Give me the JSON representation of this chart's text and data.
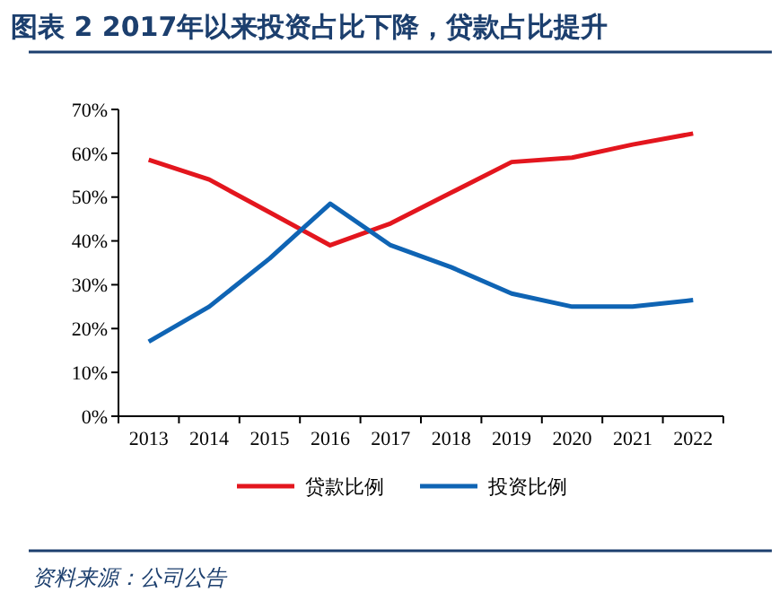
{
  "chart_data": {
    "type": "line",
    "title": "图表 2   2017年以来投资占比下降，贷款占比提升",
    "categories": [
      "2013",
      "2014",
      "2015",
      "2016",
      "2017",
      "2018",
      "2019",
      "2020",
      "2021",
      "2022"
    ],
    "series": [
      {
        "name": "贷款比例",
        "color": "#e3161e",
        "values": [
          58.5,
          54,
          46.5,
          39,
          44,
          51,
          58,
          59,
          62,
          64.5
        ]
      },
      {
        "name": "投资比例",
        "color": "#0f64b4",
        "values": [
          17,
          25,
          36,
          48.5,
          39,
          34,
          28,
          25,
          25,
          26.5
        ]
      }
    ],
    "ylim": [
      0,
      70
    ],
    "yticks": [
      {
        "value": 0,
        "label": "0%"
      },
      {
        "value": 10,
        "label": "10%"
      },
      {
        "value": 20,
        "label": "20%"
      },
      {
        "value": 30,
        "label": "30%"
      },
      {
        "value": 40,
        "label": "40%"
      },
      {
        "value": 50,
        "label": "50%"
      },
      {
        "value": 60,
        "label": "60%"
      },
      {
        "value": 70,
        "label": "70%"
      }
    ],
    "legend": "bottom",
    "grid": false,
    "marker": "none",
    "line_style": "solid",
    "annotations": [
      "资料来源：公司公告"
    ]
  }
}
